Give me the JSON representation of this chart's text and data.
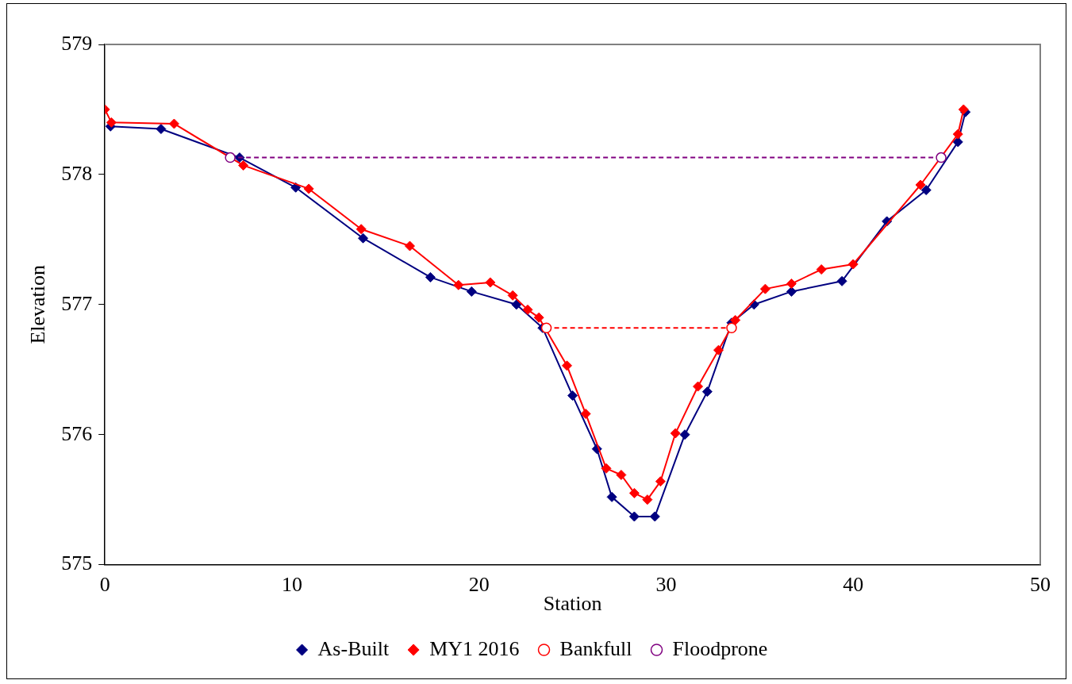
{
  "chart_data": {
    "type": "line",
    "xlabel": "Station",
    "ylabel": "Elevation",
    "xlim": [
      0,
      50
    ],
    "xticks": [
      0,
      10,
      20,
      30,
      40,
      50
    ],
    "ylim": [
      575,
      579
    ],
    "yticks": [
      575,
      576,
      577,
      578,
      579
    ],
    "grid": false,
    "legend": "bottom",
    "series": [
      {
        "name": "As-Built",
        "color": "#000080",
        "marker": "diamond",
        "line_style": "solid",
        "x": [
          0.3,
          3.0,
          7.2,
          10.2,
          13.8,
          17.4,
          19.6,
          22.0,
          23.4,
          25.0,
          26.3,
          27.1,
          28.3,
          29.4,
          31.0,
          32.2,
          33.5,
          34.7,
          36.7,
          39.4,
          41.8,
          43.9,
          45.6,
          46.0
        ],
        "values": [
          578.37,
          578.35,
          578.13,
          577.9,
          577.51,
          577.21,
          577.1,
          577.0,
          576.82,
          576.3,
          575.89,
          575.52,
          575.37,
          575.37,
          576.0,
          576.33,
          576.86,
          577.0,
          577.1,
          577.18,
          577.64,
          577.88,
          578.25,
          578.48
        ]
      },
      {
        "name": "MY1 2016",
        "color": "#ff0000",
        "marker": "diamond",
        "line_style": "solid",
        "x": [
          0.0,
          0.35,
          3.7,
          7.4,
          10.9,
          13.7,
          16.3,
          18.9,
          20.6,
          21.8,
          22.6,
          23.2,
          24.7,
          25.7,
          26.8,
          27.6,
          28.3,
          29.0,
          29.7,
          30.5,
          31.7,
          32.8,
          33.7,
          35.3,
          36.7,
          38.3,
          40.0,
          43.6,
          45.6,
          45.9
        ],
        "values": [
          578.5,
          578.4,
          578.39,
          578.07,
          577.89,
          577.58,
          577.45,
          577.15,
          577.17,
          577.07,
          576.96,
          576.9,
          576.53,
          576.16,
          575.74,
          575.69,
          575.55,
          575.5,
          575.64,
          576.01,
          576.37,
          576.65,
          576.88,
          577.12,
          577.16,
          577.27,
          577.31,
          577.92,
          578.31,
          578.5
        ]
      },
      {
        "name": "Bankfull",
        "color": "#ff0000",
        "marker": "circle",
        "line_style": "dashed",
        "x": [
          23.6,
          33.5
        ],
        "values": [
          576.82,
          576.82
        ]
      },
      {
        "name": "Floodprone",
        "color": "#800080",
        "marker": "circle",
        "line_style": "dashed",
        "x": [
          6.7,
          44.7
        ],
        "values": [
          578.13,
          578.13
        ]
      }
    ]
  }
}
